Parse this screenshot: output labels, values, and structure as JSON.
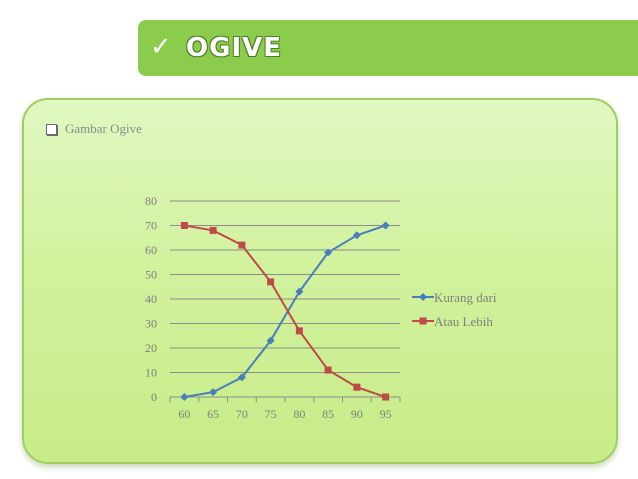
{
  "slide": {
    "check_icon": "✓",
    "title": "OGIVE",
    "bullet_text": "Gambar Ogive"
  },
  "chart_data": {
    "type": "line",
    "x": [
      60,
      65,
      70,
      75,
      80,
      85,
      90,
      95
    ],
    "yticks": [
      0,
      10,
      20,
      30,
      40,
      50,
      60,
      70,
      80
    ],
    "ylim": [
      0,
      80
    ],
    "grid": true,
    "legend_position": "right",
    "series": [
      {
        "name": "Kurang dari",
        "values": [
          0,
          2,
          8,
          23,
          43,
          59,
          66,
          70
        ],
        "color": "#4a7ebb",
        "marker": "diamond"
      },
      {
        "name": "Atau Lebih",
        "values": [
          70,
          68,
          62,
          47,
          27,
          11,
          4,
          0
        ],
        "color": "#be4b48",
        "marker": "square"
      }
    ]
  }
}
